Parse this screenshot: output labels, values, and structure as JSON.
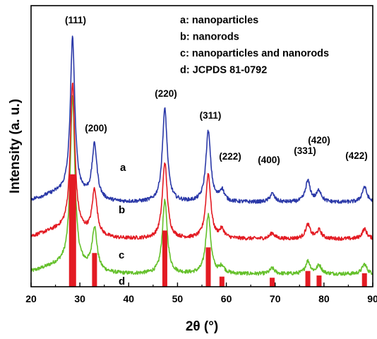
{
  "chart_data": {
    "type": "line",
    "title": "",
    "xlabel": "2θ   (°)",
    "ylabel": "Intensity  (a. u.)",
    "xlim": [
      20,
      90
    ],
    "xticks": [
      20,
      30,
      40,
      50,
      60,
      70,
      80,
      90
    ],
    "y_ticks_shown": false,
    "grid": false,
    "legend": {
      "placement": "top-right",
      "entries": [
        "a: nanoparticles",
        "b: nanorods",
        "c: nanoparticles and nanorods",
        "d: JCPDS 81-0792"
      ]
    },
    "peaks": [
      {
        "hkl": "(111)",
        "two_theta": 28.5
      },
      {
        "hkl": "(200)",
        "two_theta": 33.0
      },
      {
        "hkl": "(220)",
        "two_theta": 47.4
      },
      {
        "hkl": "(311)",
        "two_theta": 56.3
      },
      {
        "hkl": "(222)",
        "two_theta": 59.1
      },
      {
        "hkl": "(400)",
        "two_theta": 69.4
      },
      {
        "hkl": "(331)",
        "two_theta": 76.7
      },
      {
        "hkl": "(420)",
        "two_theta": 79.0
      },
      {
        "hkl": "(422)",
        "two_theta": 88.3
      }
    ],
    "series": [
      {
        "name": "a",
        "color": "#2b39a8",
        "baseline": 30,
        "peak_heights": [
          55,
          19,
          33,
          25,
          4,
          3,
          7.5,
          4,
          5.5
        ]
      },
      {
        "name": "b",
        "color": "#e31b23",
        "baseline": 17,
        "peak_heights": [
          52,
          16,
          27,
          23,
          3,
          2,
          5,
          3,
          3.5
        ]
      },
      {
        "name": "c",
        "color": "#64c02a",
        "baseline": 4.5,
        "peak_heights": [
          60,
          15,
          26,
          21,
          2.5,
          2,
          4.5,
          3,
          3.5
        ]
      }
    ],
    "reference": {
      "name": "d",
      "color": "#e31b23",
      "two_theta": [
        28.5,
        33.0,
        47.4,
        56.3,
        59.1,
        69.4,
        76.7,
        79.0,
        88.3
      ],
      "intensity": [
        100,
        30,
        50,
        35,
        9,
        8,
        14,
        10,
        12
      ]
    }
  }
}
